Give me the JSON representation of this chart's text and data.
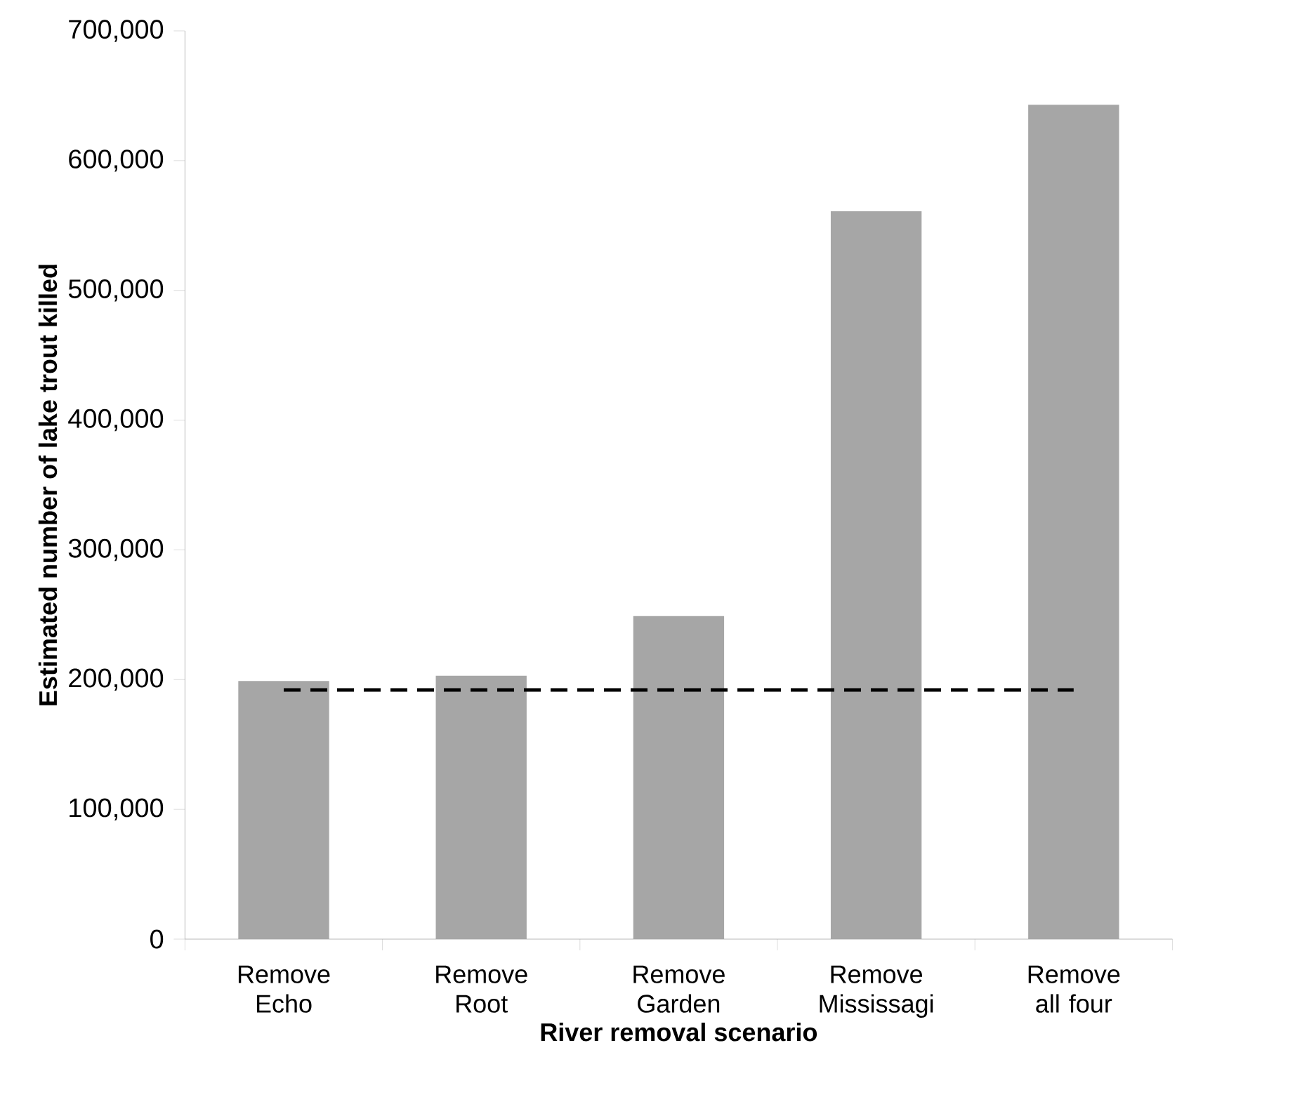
{
  "chart_data": {
    "type": "bar",
    "xlabel": "River removal scenario",
    "ylabel": "Estimated number of lake trout killed",
    "categories": [
      "Remove Echo",
      "Remove Root",
      "Remove Garden",
      "Remove Mississagi",
      "Remove all four"
    ],
    "values": [
      199000,
      203000,
      249000,
      561000,
      643000
    ],
    "color": "#a6a6a6",
    "ylim": [
      0,
      700000
    ],
    "yticks": [
      {
        "value": 0,
        "label": "0"
      },
      {
        "value": 100000,
        "label": "100,000"
      },
      {
        "value": 200000,
        "label": "200,000"
      },
      {
        "value": 300000,
        "label": "300,000"
      },
      {
        "value": 400000,
        "label": "400,000"
      },
      {
        "value": 500000,
        "label": "500,000"
      },
      {
        "value": 600000,
        "label": "600,000"
      },
      {
        "value": 700000,
        "label": "700,000"
      }
    ],
    "ref_lines": [
      {
        "axis": "y",
        "value": 192000,
        "color": "#000000",
        "line_style": "dashed"
      }
    ]
  }
}
